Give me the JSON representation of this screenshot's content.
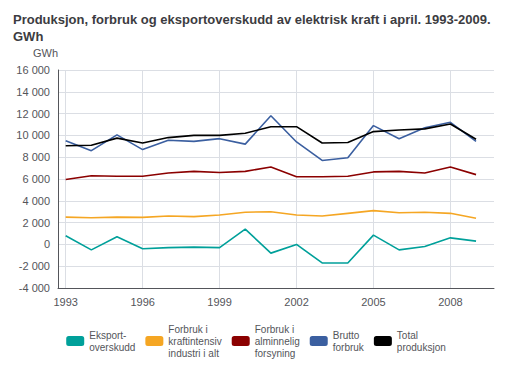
{
  "chart_data": {
    "type": "line",
    "title": "Produksjon, forbruk og eksportoverskudd av elektrisk kraft i april. 1993-2009. GWh",
    "ylabel": "GWh",
    "x": [
      1993,
      1994,
      1995,
      1996,
      1997,
      1998,
      1999,
      2000,
      2001,
      2002,
      2003,
      2004,
      2005,
      2006,
      2007,
      2008,
      2009
    ],
    "series": [
      {
        "name": "Eksport-\noverskudd",
        "color": "#00A09A",
        "values": [
          800,
          -500,
          700,
          -400,
          -300,
          -250,
          -300,
          1400,
          -800,
          0,
          -1700,
          -1700,
          850,
          -500,
          -200,
          600,
          300
        ]
      },
      {
        "name": "Forbruk i\nkraftintensiv\nindustri i alt",
        "color": "#F5A623",
        "values": [
          2500,
          2450,
          2500,
          2480,
          2600,
          2550,
          2700,
          2950,
          3000,
          2700,
          2600,
          2850,
          3100,
          2900,
          2950,
          2850,
          2400
        ]
      },
      {
        "name": "Forbruk i\nalminnelig\nforsyning",
        "color": "#8B0000",
        "values": [
          5950,
          6300,
          6250,
          6250,
          6550,
          6700,
          6600,
          6700,
          7100,
          6200,
          6200,
          6250,
          6650,
          6700,
          6550,
          7100,
          6400
        ]
      },
      {
        "name": "Brutto\nforbruk",
        "color": "#3B5FA0",
        "values": [
          9500,
          8600,
          10050,
          8700,
          9550,
          9450,
          9700,
          9200,
          11800,
          9400,
          7700,
          7950,
          10900,
          9700,
          10700,
          11200,
          9450
        ]
      },
      {
        "name": "Total\nproduksjon",
        "color": "#000000",
        "values": [
          9050,
          9100,
          9750,
          9300,
          9800,
          10000,
          10000,
          10200,
          10800,
          10800,
          9300,
          9350,
          10350,
          10500,
          10600,
          11050,
          9650
        ]
      }
    ],
    "xlim": [
      1992.7,
      2009.7
    ],
    "xticks": [
      1993,
      1996,
      1999,
      2002,
      2005,
      2008
    ],
    "ylim": [
      -4000,
      16000
    ],
    "yticks": [
      {
        "value": -4000,
        "label": "-4 000"
      },
      {
        "value": -2000,
        "label": "-2 000"
      },
      0,
      {
        "value": 2000,
        "label": "2 000"
      },
      {
        "value": 4000,
        "label": "4 000"
      },
      {
        "value": 6000,
        "label": "6 000"
      },
      {
        "value": 8000,
        "label": "8 000"
      },
      {
        "value": 10000,
        "label": "10 000"
      },
      {
        "value": 12000,
        "label": "12 000"
      },
      {
        "value": 14000,
        "label": "14 000"
      },
      {
        "value": 16000,
        "label": "16 000"
      }
    ],
    "grid": true,
    "legend": "bottom"
  }
}
